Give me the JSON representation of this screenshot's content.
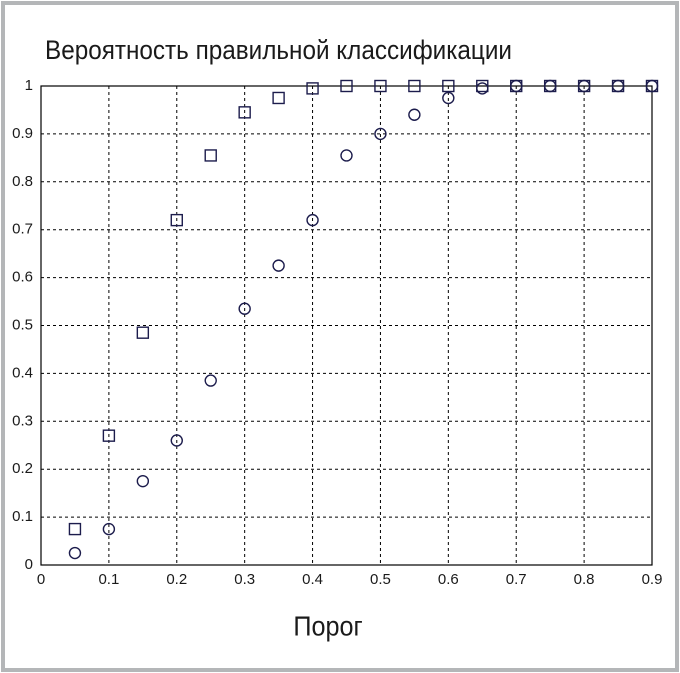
{
  "chart_data": {
    "type": "scatter",
    "title": "Вероятность правильной классификации",
    "x_label": "Порог",
    "x": [
      0.05,
      0.1,
      0.15,
      0.2,
      0.25,
      0.3,
      0.35,
      0.4,
      0.45,
      0.5,
      0.55,
      0.6,
      0.65,
      0.7,
      0.75,
      0.8,
      0.85,
      0.9
    ],
    "series": [
      {
        "marker": "square",
        "color": "#1c1c4c",
        "values": [
          0.075,
          0.27,
          0.485,
          0.72,
          0.855,
          0.945,
          0.975,
          0.995,
          1,
          1,
          1,
          1,
          1,
          1,
          1,
          1,
          1,
          1
        ]
      },
      {
        "marker": "circle",
        "color": "#1c1c4c",
        "values": [
          0.025,
          0.075,
          0.175,
          0.26,
          0.385,
          0.535,
          0.625,
          0.72,
          0.855,
          0.9,
          0.94,
          0.975,
          0.995,
          1,
          1,
          1,
          1,
          1
        ]
      }
    ],
    "xlim": [
      0,
      0.9
    ],
    "ylim": [
      0,
      1
    ],
    "xticks": [
      0,
      0.1,
      0.2,
      0.3,
      0.4,
      0.5,
      0.6,
      0.7,
      0.8,
      0.9
    ],
    "yticks": [
      0,
      0.1,
      0.2,
      0.3,
      0.4,
      0.5,
      0.6,
      0.7,
      0.8,
      0.9,
      1
    ],
    "grid": true
  }
}
